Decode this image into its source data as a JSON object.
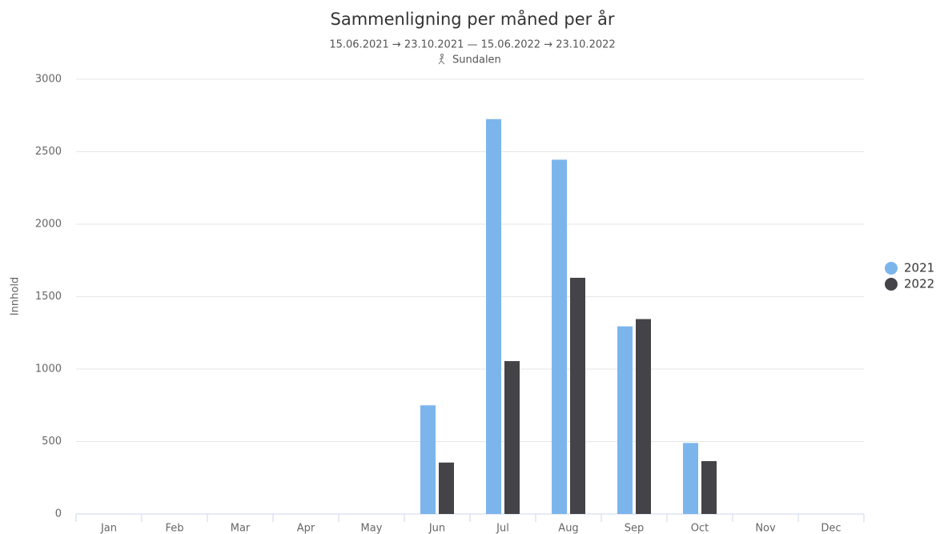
{
  "chart_data": {
    "type": "bar",
    "title": "Sammenligning per måned per år",
    "subtitle": "15.06.2021 → 23.10.2021  —  15.06.2022 → 23.10.2022",
    "location": "Sundalen",
    "y_label": "Innhold",
    "categories": [
      "Jan",
      "Feb",
      "Mar",
      "Apr",
      "May",
      "Jun",
      "Jul",
      "Aug",
      "Sep",
      "Oct",
      "Nov",
      "Dec"
    ],
    "series": [
      {
        "name": "2021",
        "color": "#7cb5ec",
        "values": [
          null,
          null,
          null,
          null,
          null,
          750,
          2725,
          2445,
          1295,
          490,
          null,
          null
        ]
      },
      {
        "name": "2022",
        "color": "#434348",
        "values": [
          null,
          null,
          null,
          null,
          null,
          355,
          1055,
          1630,
          1345,
          365,
          null,
          null
        ]
      }
    ],
    "ylim": [
      0,
      3000
    ],
    "yticks": [
      0,
      500,
      1000,
      1500,
      2000,
      2500,
      3000
    ],
    "grid": true,
    "legend": "right"
  }
}
